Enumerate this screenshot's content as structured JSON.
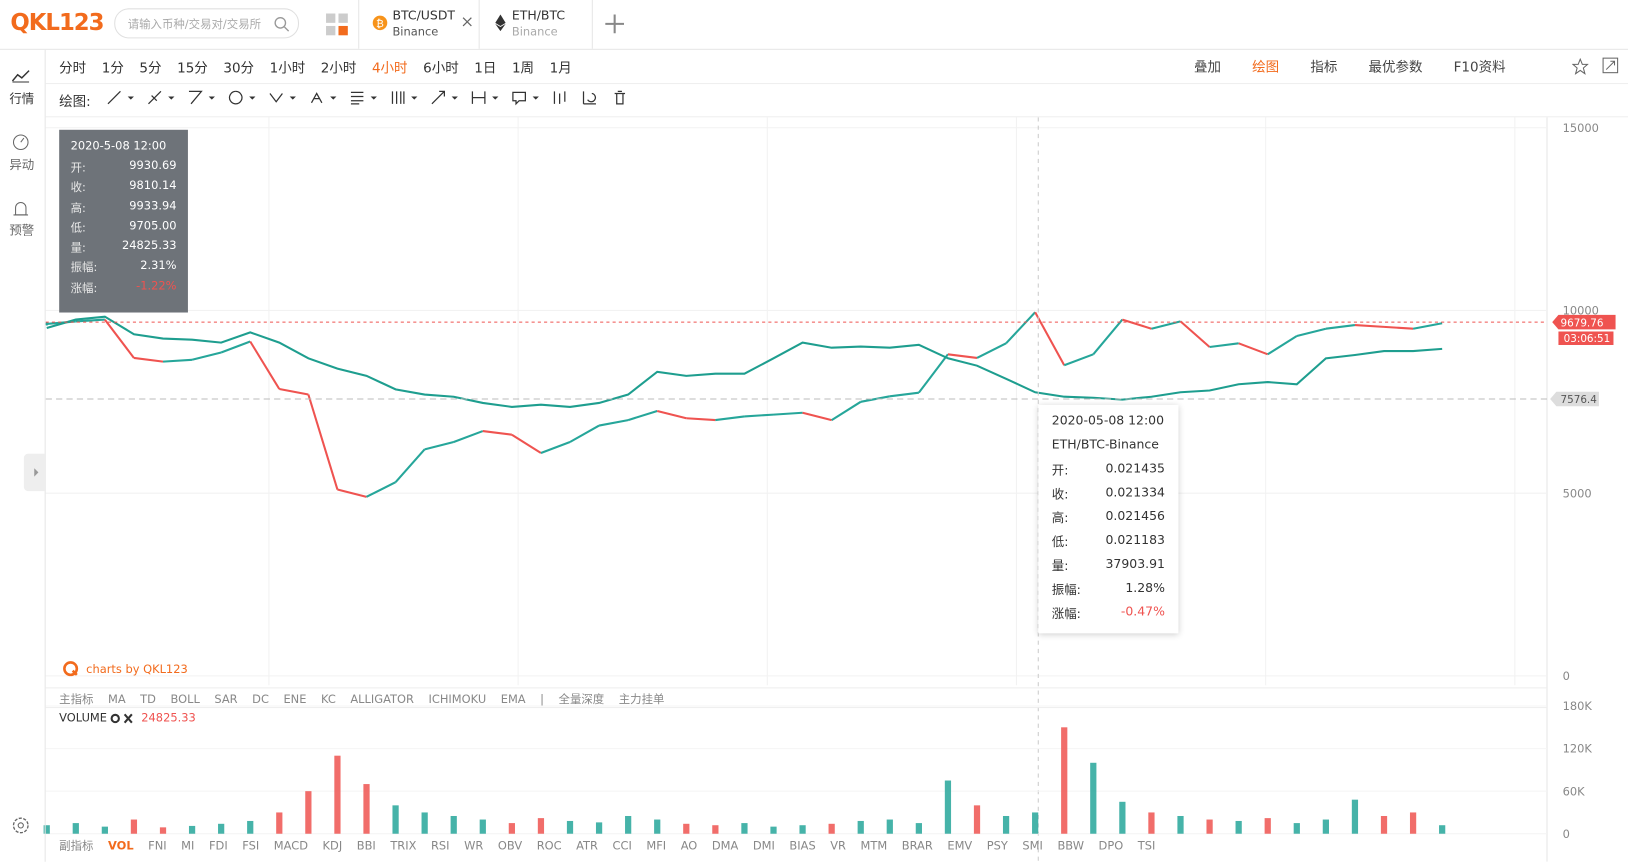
{
  "header": {
    "logo": "QKL123",
    "search_placeholder": "请输入币种/交易对/交易所",
    "tabs": [
      {
        "pair": "BTC/USDT",
        "exchange": "Binance"
      },
      {
        "pair": "ETH/BTC",
        "exchange": "Binance"
      }
    ]
  },
  "sidebar": [
    "行情",
    "异动",
    "预警"
  ],
  "periods": [
    "分时",
    "1分",
    "5分",
    "15分",
    "30分",
    "1小时",
    "2小时",
    "4小时",
    "6小时",
    "1日",
    "1周",
    "1月"
  ],
  "active_period": 7,
  "tools": [
    "叠加",
    "绘图",
    "指标",
    "最优参数",
    "F10资料"
  ],
  "active_tool": 1,
  "draw_label": "绘图:",
  "ohlc_box": {
    "time": "2020-5-08 12:00",
    "rows": [
      {
        "label": "开:",
        "value": "9930.69"
      },
      {
        "label": "收:",
        "value": "9810.14"
      },
      {
        "label": "高:",
        "value": "9933.94"
      },
      {
        "label": "低:",
        "value": "9705.00"
      },
      {
        "label": "量:",
        "value": "24825.33"
      },
      {
        "label": "振幅:",
        "value": "2.31%"
      },
      {
        "label": "涨幅:",
        "value": "-1.22%"
      }
    ]
  },
  "tooltip": {
    "time": "2020-05-08 12:00",
    "pair": "ETH/BTC-Binance",
    "rows": [
      {
        "label": "开:",
        "value": "0.021435"
      },
      {
        "label": "收:",
        "value": "0.021334"
      },
      {
        "label": "高:",
        "value": "0.021456"
      },
      {
        "label": "低:",
        "value": "0.021183"
      },
      {
        "label": "量:",
        "value": "37903.91"
      },
      {
        "label": "振幅:",
        "value": "1.28%"
      },
      {
        "label": "涨幅:",
        "value": "-0.47%"
      }
    ]
  },
  "watermark": "charts by QKL123",
  "chart_data": {
    "type": "line",
    "ylim": [
      0,
      15000
    ],
    "yticks": [
      0,
      5000,
      10000,
      15000
    ],
    "grid": true,
    "last_price": 9679.76,
    "countdown": "03:06:51",
    "compare_price": 7576.4,
    "up_color": "#26a69a",
    "down_color": "#ef5350",
    "series": [
      {
        "name": "BTC/USDT",
        "color": "#ef5350",
        "values": [
          9630,
          9700,
          9750,
          8700,
          8600,
          8650,
          8850,
          9150,
          7850,
          7700,
          5100,
          4900,
          5300,
          6200,
          6400,
          6700,
          6600,
          6100,
          6400,
          6850,
          7000,
          7250,
          7050,
          7000,
          7100,
          7150,
          7200,
          7000,
          7500,
          7650,
          7750,
          8800,
          8700,
          9100,
          9950,
          8500,
          8800,
          9750,
          9500,
          9700,
          9000,
          9100,
          8800,
          9300,
          9500,
          9600,
          9550,
          9500,
          9650
        ]
      },
      {
        "name": "ETH/BTC",
        "color": "#1e9e8f",
        "values": [
          9520,
          9750,
          9830,
          9350,
          9230,
          9200,
          9120,
          9400,
          9120,
          8690,
          8410,
          8210,
          7840,
          7700,
          7640,
          7470,
          7360,
          7420,
          7360,
          7470,
          7700,
          8320,
          8210,
          8270,
          8270,
          8690,
          9120,
          8980,
          9010,
          8980,
          9060,
          8690,
          8490,
          8130,
          7760,
          7640,
          7610,
          7560,
          7640,
          7760,
          7810,
          7980,
          8040,
          7980,
          8690,
          8780,
          8890,
          8890,
          8950
        ]
      }
    ]
  },
  "main_indicators": [
    "主指标",
    "MA",
    "TD",
    "BOLL",
    "SAR",
    "DC",
    "ENE",
    "KC",
    "ALLIGATOR",
    "ICHIMOKU",
    "EMA",
    "|",
    "全量深度",
    "主力挂单"
  ],
  "volume_chart": {
    "type": "bar",
    "title": "VOLUME",
    "current": "24825.33",
    "ylim": [
      0,
      180000
    ],
    "yticks": [
      {
        "value": 0,
        "label": "0"
      },
      {
        "value": 60000,
        "label": "60K"
      },
      {
        "value": 120000,
        "label": "120K"
      },
      {
        "value": 180000,
        "label": "180K"
      }
    ],
    "values": [
      12000,
      15000,
      10000,
      20000,
      9000,
      11000,
      14000,
      18000,
      30000,
      60000,
      110000,
      70000,
      40000,
      30000,
      25000,
      20000,
      15000,
      22000,
      18000,
      16000,
      25000,
      20000,
      14000,
      12000,
      15000,
      10000,
      12000,
      14000,
      18000,
      20000,
      15000,
      75000,
      40000,
      25000,
      30000,
      150000,
      100000,
      45000,
      30000,
      25000,
      20000,
      18000,
      22000,
      15000,
      20000,
      48000,
      25000,
      30000,
      12000
    ]
  },
  "sub_indicators": [
    "副指标",
    "VOL",
    "FNI",
    "MI",
    "FDI",
    "FSI",
    "MACD",
    "KDJ",
    "BBI",
    "TRIX",
    "RSI",
    "WR",
    "OBV",
    "ROC",
    "ATR",
    "CCI",
    "MFI",
    "AO",
    "DMA",
    "DMI",
    "BIAS",
    "VR",
    "MTM",
    "BRAR",
    "EMV",
    "PSY",
    "SMI",
    "BBW",
    "DPO",
    "TSI"
  ],
  "active_sub": 1
}
